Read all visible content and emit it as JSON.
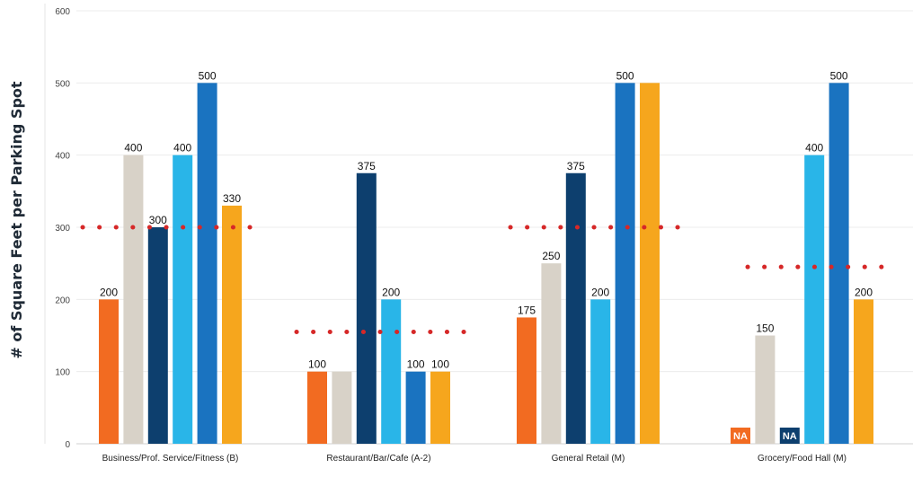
{
  "chart_data": {
    "type": "bar",
    "title": "",
    "xlabel": "",
    "ylabel": "# of Square Feet per Parking Spot",
    "ylim": [
      0,
      600
    ],
    "yticks": [
      0,
      100,
      200,
      300,
      400,
      500,
      600
    ],
    "grid": true,
    "legend": "none",
    "categories": [
      "Business/Prof. Service/Fitness (B)",
      "Restaurant/Bar/Cafe (A-2)",
      "General Retail (M)",
      "Grocery/Food Hall (M)"
    ],
    "series": [
      {
        "color": "#f26b21",
        "values": [
          200,
          100,
          175,
          null
        ],
        "labels": [
          "200",
          "100",
          "175",
          "NA"
        ]
      },
      {
        "color": "#d8d2c8",
        "values": [
          400,
          100,
          250,
          150
        ],
        "labels": [
          "400",
          "",
          "250",
          "150"
        ]
      },
      {
        "color": "#0d3f6e",
        "values": [
          300,
          375,
          375,
          null
        ],
        "labels": [
          "300",
          "375",
          "375",
          "NA"
        ]
      },
      {
        "color": "#29b5e8",
        "values": [
          400,
          200,
          200,
          400
        ],
        "labels": [
          "400",
          "200",
          "200",
          "400"
        ]
      },
      {
        "color": "#1a73c0",
        "values": [
          500,
          100,
          500,
          500
        ],
        "labels": [
          "500",
          "100",
          "500",
          "500"
        ]
      },
      {
        "color": "#f6a61d",
        "values": [
          330,
          100,
          500,
          200
        ],
        "labels": [
          "330",
          "100",
          "",
          "200"
        ]
      }
    ],
    "reference_lines": [
      {
        "value": 300,
        "color": "#d62828"
      },
      {
        "value": 155,
        "color": "#d62828"
      },
      {
        "value": 300,
        "color": "#d62828"
      },
      {
        "value": 245,
        "color": "#d62828"
      }
    ]
  }
}
